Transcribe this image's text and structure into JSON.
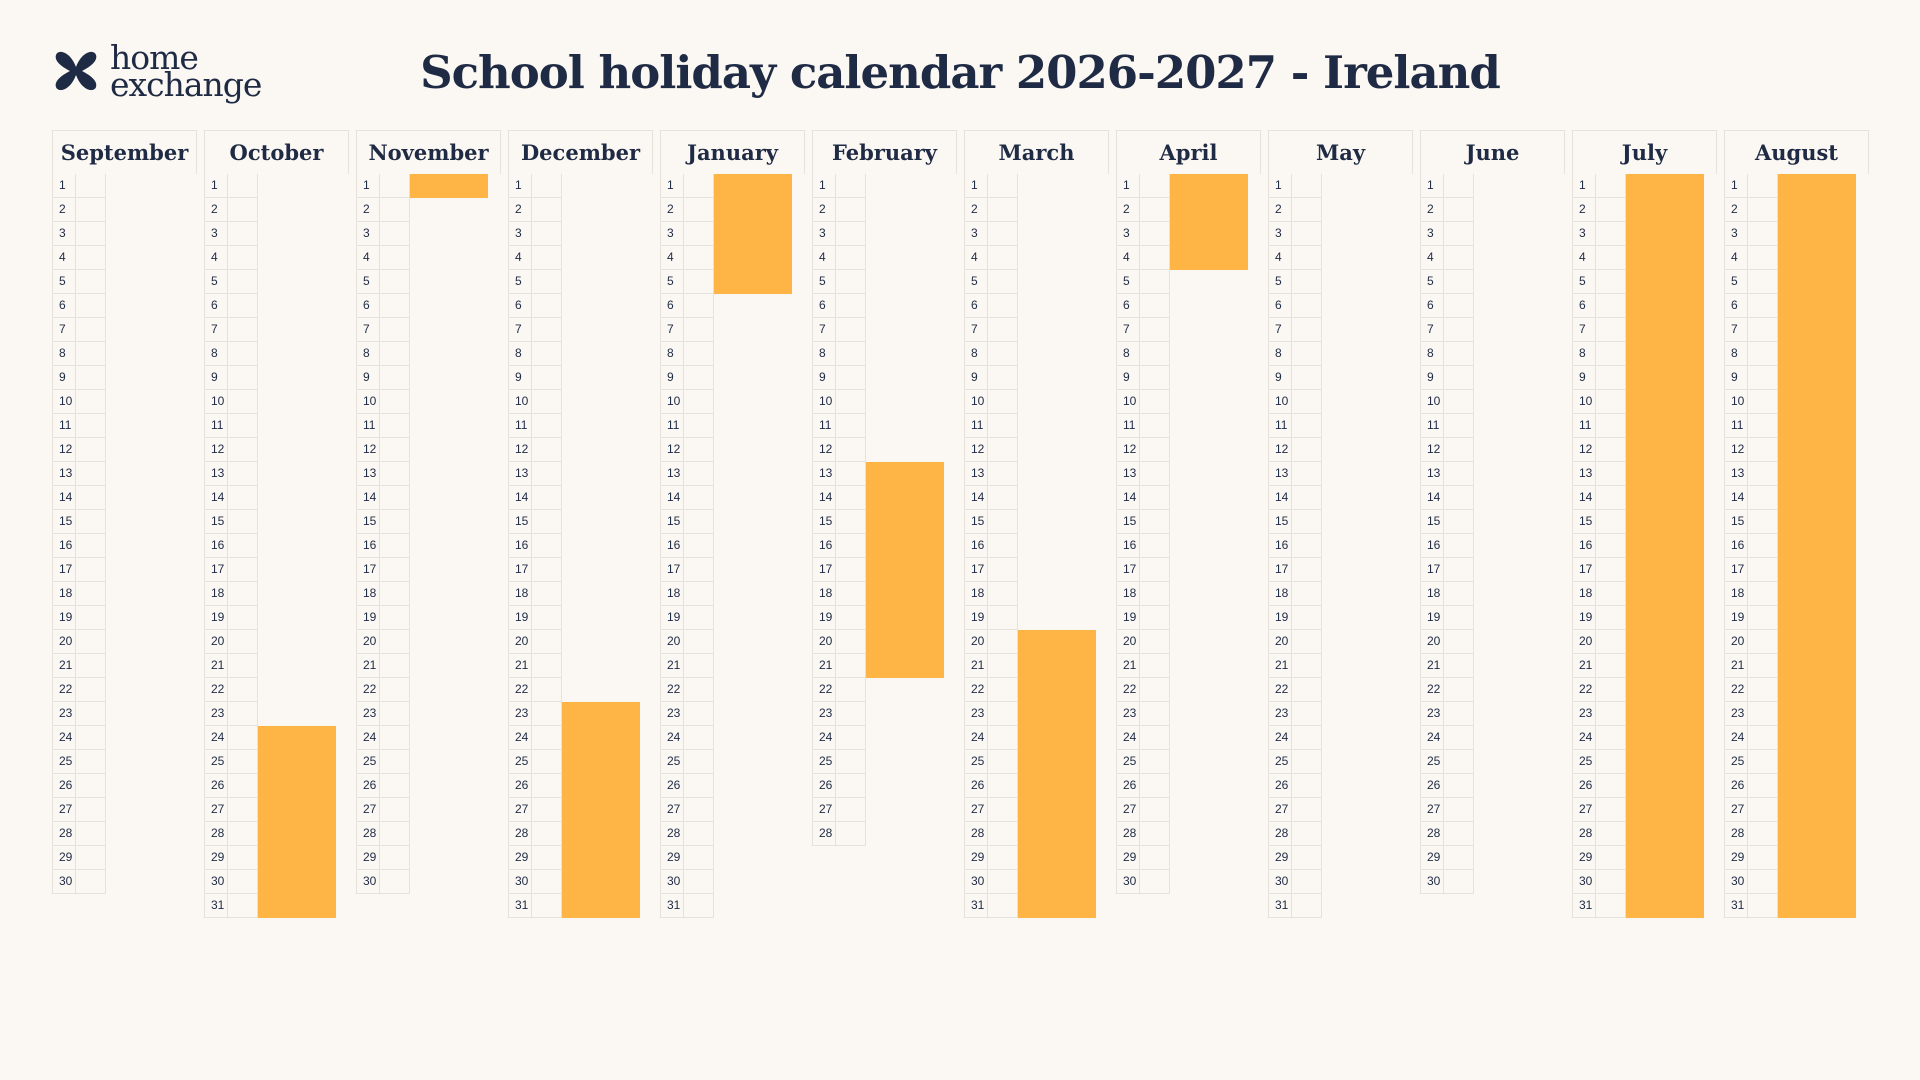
{
  "header": {
    "logo_line1": "home",
    "logo_line2": "exchange",
    "title": "School holiday calendar 2026-2027 - Ireland"
  },
  "colors": {
    "background": "#fbf8f3",
    "text": "#1f2a44",
    "holiday": "#ffb545",
    "grid": "#e6e1da"
  },
  "calendar": {
    "months": [
      {
        "name": "September",
        "days": 30,
        "holidays": []
      },
      {
        "name": "October",
        "days": 31,
        "holidays": [
          [
            24,
            31
          ]
        ]
      },
      {
        "name": "November",
        "days": 30,
        "holidays": [
          [
            1,
            1
          ]
        ]
      },
      {
        "name": "December",
        "days": 31,
        "holidays": [
          [
            23,
            31
          ]
        ]
      },
      {
        "name": "January",
        "days": 31,
        "holidays": [
          [
            1,
            5
          ]
        ]
      },
      {
        "name": "February",
        "days": 28,
        "holidays": [
          [
            13,
            21
          ]
        ]
      },
      {
        "name": "March",
        "days": 31,
        "holidays": [
          [
            20,
            31
          ]
        ]
      },
      {
        "name": "April",
        "days": 30,
        "holidays": [
          [
            1,
            4
          ]
        ]
      },
      {
        "name": "May",
        "days": 31,
        "holidays": []
      },
      {
        "name": "June",
        "days": 30,
        "holidays": []
      },
      {
        "name": "July",
        "days": 31,
        "holidays": [
          [
            1,
            31
          ]
        ]
      },
      {
        "name": "August",
        "days": 31,
        "holidays": [
          [
            1,
            31
          ]
        ]
      }
    ]
  }
}
